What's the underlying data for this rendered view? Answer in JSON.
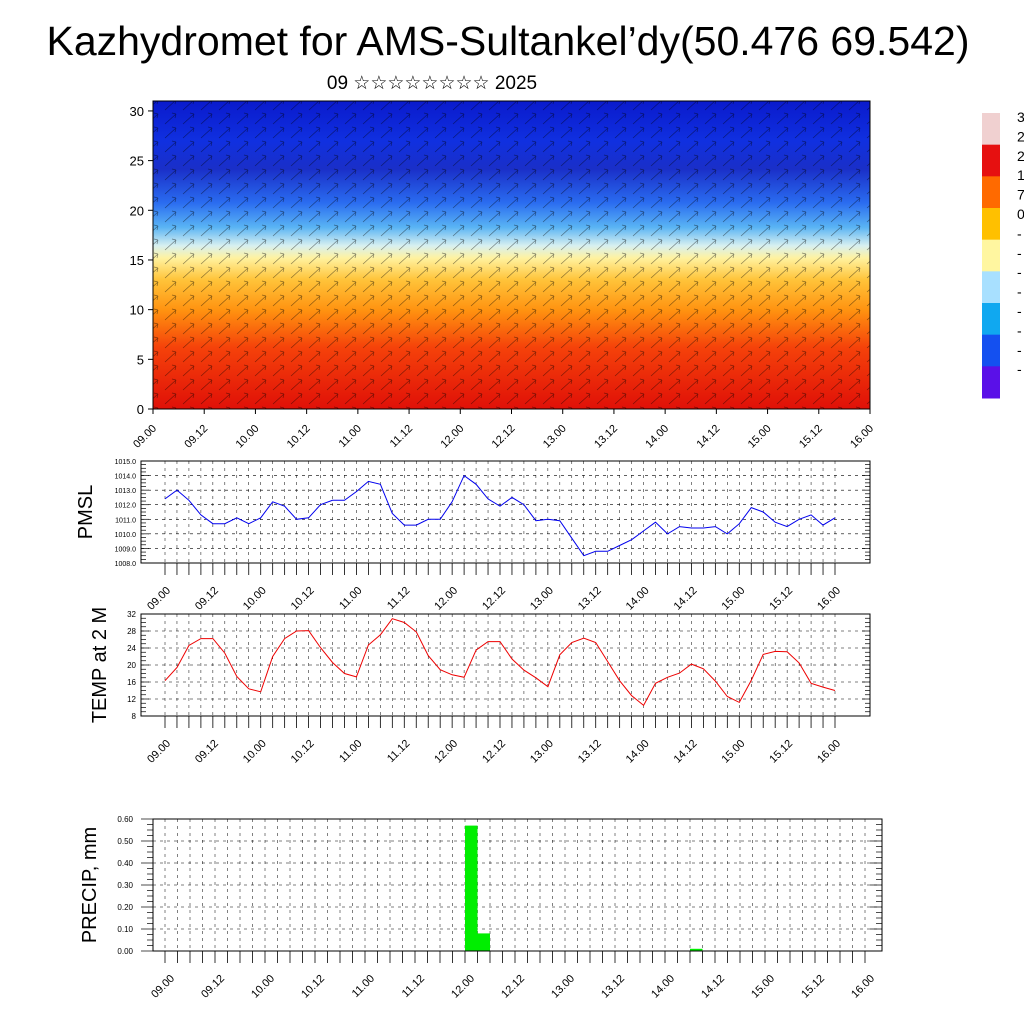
{
  "title": "Kazhydromet for AMS-Sultankel’dy(50.476 69.542)",
  "subtitle": "09 ☆☆☆☆☆☆☆☆ 2025",
  "colors": {
    "pmsl_line": "#0000ee",
    "temp_line": "#ee0000",
    "precip_bar": "#00ee00",
    "grid": "#000000"
  },
  "colorbar": {
    "labels": [
      "3",
      "2",
      "2",
      "1",
      "7",
      "0",
      "-",
      "-",
      "-",
      "-",
      "-",
      "-",
      "-",
      "-"
    ],
    "colors": [
      "#f0d0d0",
      "#e61010",
      "#ff6a00",
      "#ffc000",
      "#fff6a0",
      "#a8e0ff",
      "#10a8f0",
      "#1450f0",
      "#5a10e8"
    ]
  },
  "x_ticks": [
    "09.00",
    "09.12",
    "10.00",
    "10.12",
    "11.00",
    "11.12",
    "12.00",
    "12.12",
    "13.00",
    "13.12",
    "14.00",
    "14.12",
    "15.00",
    "15.12",
    "16.00"
  ],
  "chart_data": [
    {
      "type": "heatmap",
      "panel": "cross-section",
      "x": [
        "09.00",
        "09.12",
        "10.00",
        "10.12",
        "11.00",
        "11.12",
        "12.00",
        "12.12",
        "13.00",
        "13.12",
        "14.00",
        "14.12",
        "15.00",
        "15.12",
        "16.00"
      ],
      "ylim": [
        0,
        31
      ],
      "yticks": [
        0,
        5,
        10,
        15,
        20,
        25,
        30
      ],
      "description_of_fill": "warm (red) near surface, yellow about 15, blue aloft",
      "wind_barbs": true
    },
    {
      "type": "line",
      "panel": "pmsl",
      "ylabel": "PMSL",
      "ylim": [
        1008.0,
        1015.0
      ],
      "yticks": [
        "1008.0",
        "1009.0",
        "1010.0",
        "1011.0",
        "1012.0",
        "1013.0",
        "1014.0",
        "1015.0"
      ],
      "x_hours": [
        0,
        3,
        6,
        9,
        12,
        15,
        18,
        21,
        24,
        27,
        30,
        33,
        36,
        39,
        42,
        45,
        48,
        51,
        54,
        57,
        60,
        63,
        66,
        69,
        72,
        75,
        78,
        81,
        84,
        87,
        90,
        93,
        96,
        99,
        102,
        105,
        108,
        111,
        114,
        117,
        120,
        123,
        126,
        129,
        132,
        135,
        138,
        141,
        144,
        147,
        150,
        153,
        156,
        159,
        162,
        165,
        168
      ],
      "values": [
        1012.4,
        1013.0,
        1012.3,
        1011.3,
        1010.7,
        1010.7,
        1011.1,
        1010.7,
        1011.1,
        1012.2,
        1011.9,
        1011.0,
        1011.1,
        1012.0,
        1012.3,
        1012.3,
        1012.9,
        1013.6,
        1013.4,
        1011.4,
        1010.6,
        1010.6,
        1011.0,
        1011.0,
        1012.2,
        1014.0,
        1013.4,
        1012.4,
        1011.9,
        1012.5,
        1012.0,
        1010.9,
        1011.0,
        1010.9,
        1009.7,
        1008.5,
        1008.8,
        1008.8,
        1009.2,
        1009.6,
        1010.2,
        1010.8,
        1010.0,
        1010.5,
        1010.4,
        1010.4,
        1010.5,
        1010.0,
        1010.7,
        1011.8,
        1011.5,
        1010.8,
        1010.5,
        1011.0,
        1011.3,
        1010.6,
        1011.1
      ]
    },
    {
      "type": "line",
      "panel": "temp",
      "ylabel": "TEMP at 2 M",
      "ylim": [
        8,
        32
      ],
      "yticks": [
        "8",
        "12",
        "16",
        "20",
        "24",
        "28",
        "32"
      ],
      "x_hours": [
        0,
        3,
        6,
        9,
        12,
        15,
        18,
        21,
        24,
        27,
        30,
        33,
        36,
        39,
        42,
        45,
        48,
        51,
        54,
        57,
        60,
        63,
        66,
        69,
        72,
        75,
        78,
        81,
        84,
        87,
        90,
        93,
        96,
        99,
        102,
        105,
        108,
        111,
        114,
        117,
        120,
        123,
        126,
        129,
        132,
        135,
        138,
        141,
        144,
        147,
        150,
        153,
        156,
        159,
        162,
        165,
        168
      ],
      "values": [
        16.3,
        19.4,
        24.6,
        26.2,
        26.2,
        22.8,
        17.3,
        14.4,
        13.7,
        22.0,
        26.2,
        28.0,
        28.1,
        24.1,
        20.6,
        18.0,
        17.2,
        24.7,
        27.1,
        30.9,
        30.0,
        27.8,
        22.2,
        18.9,
        17.7,
        17.1,
        23.5,
        25.5,
        25.5,
        21.4,
        18.8,
        17.0,
        14.9,
        22.4,
        25.3,
        26.3,
        25.3,
        20.8,
        16.3,
        12.8,
        10.5,
        15.7,
        17.1,
        18.1,
        20.2,
        19.1,
        16.2,
        12.6,
        11.2,
        16.4,
        22.5,
        23.2,
        23.1,
        20.5,
        15.7,
        14.8,
        14.0
      ]
    },
    {
      "type": "bar",
      "panel": "precip",
      "ylabel": "PRECIP, mm",
      "ylim": [
        0.0,
        0.6
      ],
      "yticks": [
        "0.00",
        "0.10",
        "0.20",
        "0.30",
        "0.40",
        "0.50",
        "0.60"
      ],
      "bars": [
        {
          "x_hour": 72,
          "value": 0.57
        },
        {
          "x_hour": 75,
          "value": 0.08
        },
        {
          "x_hour": 126,
          "value": 0.01
        }
      ]
    }
  ]
}
